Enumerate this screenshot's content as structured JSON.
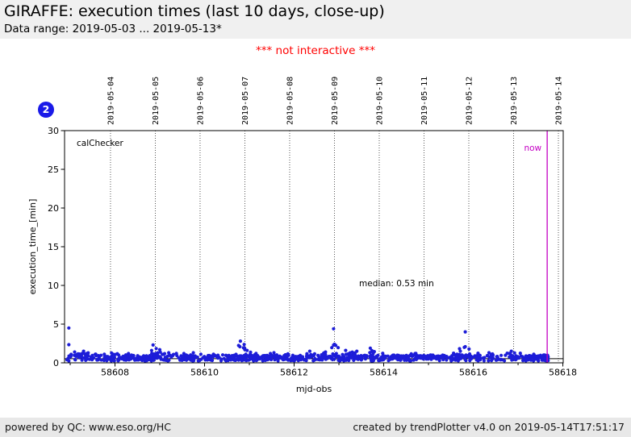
{
  "header": {
    "title": "GIRAFFE: execution times (last 10 days, close-up)",
    "subtitle": "Data range: 2019-05-03 ... 2019-05-13*"
  },
  "warning": "*** not interactive ***",
  "badge": {
    "label": "2",
    "color": "#1a1ae8"
  },
  "footer": {
    "left": "powered by QC: www.eso.org/HC",
    "right": "created by trendPlotter v4.0 on 2019-05-14T17:51:17"
  },
  "colors": {
    "point_blue": "#1d1dd8",
    "badge_blue": "#1a1ae8",
    "now_magenta": "#c400c4",
    "warning_red": "#ff0000",
    "header_bg": "#f0f0f0",
    "footer_bg": "#e8e8e8",
    "gridline": "#444444",
    "median_line": "#000000"
  },
  "chart_data": {
    "type": "scatter",
    "series_label": "calChecker",
    "xlabel": "mjd-obs",
    "ylabel": "execution_time_[min]",
    "xlim": [
      58606.874,
      58618.008
    ],
    "ylim": [
      0,
      30
    ],
    "x_ticks_major": [
      58608,
      58610,
      58612,
      58614,
      58616,
      58618
    ],
    "x_ticks_minor": [
      58607,
      58609,
      58611,
      58613,
      58615,
      58617
    ],
    "y_ticks": [
      0,
      5,
      10,
      15,
      20,
      25,
      30
    ],
    "date_gridlines": {
      "first_mjd": 58607.9,
      "step": 1,
      "labels": [
        "2019-05-04",
        "2019-05-05",
        "2019-05-06",
        "2019-05-07",
        "2019-05-08",
        "2019-05-09",
        "2019-05-10",
        "2019-05-11",
        "2019-05-12",
        "2019-05-13",
        "2019-05-14"
      ]
    },
    "median": {
      "value": 0.53,
      "label": "median: 0.53 min",
      "label_pos": [
        58613.45,
        9.9
      ]
    },
    "now_marker": {
      "mjd": 58617.65,
      "label": "now"
    },
    "points": {
      "color": "#1d1dd8",
      "radius": 2.1,
      "seed": 20190514,
      "band": {
        "x_min": 58606.92,
        "x_max": 58617.68,
        "y_min": 0.25,
        "y_max": 1.0,
        "n": 820
      },
      "sprinkle": {
        "y_min": 1.0,
        "y_max": 1.3,
        "n": 42
      },
      "clusters": [
        [
          58607.1,
          1.4,
          7
        ],
        [
          58607.3,
          1.5,
          7
        ],
        [
          58607.56,
          1.1,
          5
        ],
        [
          58608.3,
          1.2,
          5
        ],
        [
          58608.85,
          2.3,
          9
        ],
        [
          58609.0,
          1.7,
          6
        ],
        [
          58609.2,
          1.3,
          5
        ],
        [
          58609.75,
          1.3,
          5
        ],
        [
          58610.2,
          1.1,
          4
        ],
        [
          58610.8,
          2.8,
          9
        ],
        [
          58610.95,
          1.6,
          5
        ],
        [
          58611.55,
          1.3,
          5
        ],
        [
          58612.35,
          1.5,
          6
        ],
        [
          58612.7,
          1.4,
          5
        ],
        [
          58612.9,
          2.4,
          7
        ],
        [
          58613.15,
          1.6,
          5
        ],
        [
          58613.4,
          1.5,
          5
        ],
        [
          58613.7,
          1.9,
          7
        ],
        [
          58614.7,
          1.2,
          5
        ],
        [
          58615.8,
          2.0,
          7
        ],
        [
          58616.35,
          1.3,
          5
        ],
        [
          58616.85,
          1.5,
          6
        ],
        [
          58617.35,
          1.1,
          4
        ]
      ],
      "peaks": [
        [
          58606.97,
          4.5
        ],
        [
          58612.88,
          4.4
        ],
        [
          58615.82,
          4.0
        ]
      ]
    }
  }
}
